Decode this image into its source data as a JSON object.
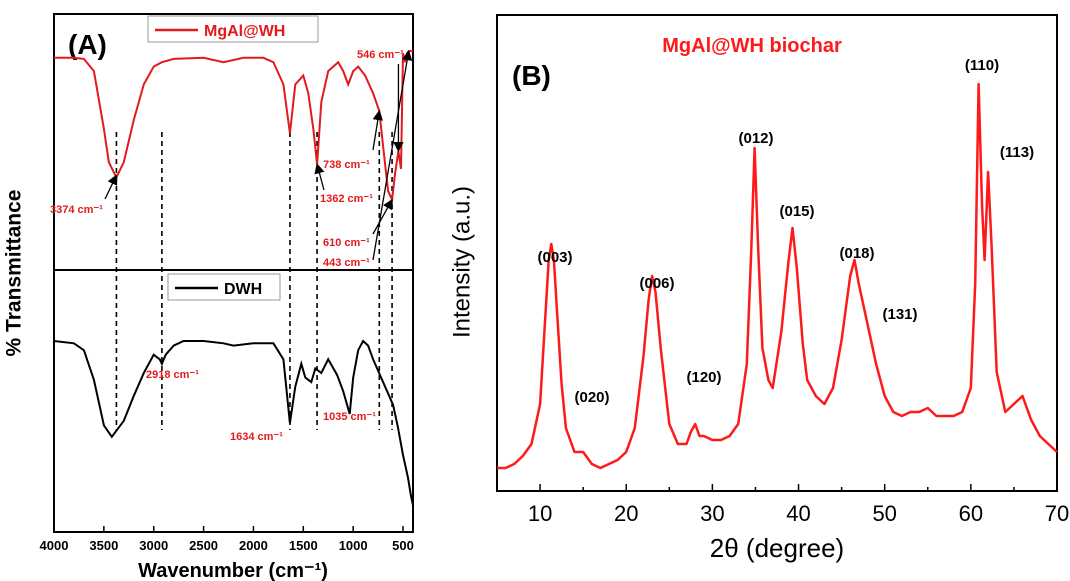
{
  "chart_data": [
    {
      "panel_label": "(A)",
      "type": "line",
      "xlabel": "Wavenumber (cm⁻¹)",
      "ylabel": "% Transmittance",
      "xlim": [
        4000,
        400
      ],
      "x_ticks": [
        4000,
        3500,
        3000,
        2500,
        2000,
        1500,
        1000,
        500
      ],
      "grid": false,
      "series": [
        {
          "name": "MgAl@WH",
          "color": "#e31a1c",
          "points": [
            [
              4000,
              0.92
            ],
            [
              3800,
              0.92
            ],
            [
              3700,
              0.915
            ],
            [
              3600,
              0.86
            ],
            [
              3500,
              0.6
            ],
            [
              3450,
              0.45
            ],
            [
              3374,
              0.38
            ],
            [
              3300,
              0.45
            ],
            [
              3200,
              0.64
            ],
            [
              3100,
              0.8
            ],
            [
              3000,
              0.88
            ],
            [
              2918,
              0.9
            ],
            [
              2800,
              0.915
            ],
            [
              2500,
              0.92
            ],
            [
              2300,
              0.9
            ],
            [
              2100,
              0.92
            ],
            [
              1900,
              0.92
            ],
            [
              1800,
              0.9
            ],
            [
              1700,
              0.8
            ],
            [
              1634,
              0.58
            ],
            [
              1580,
              0.8
            ],
            [
              1500,
              0.84
            ],
            [
              1450,
              0.76
            ],
            [
              1400,
              0.6
            ],
            [
              1362,
              0.44
            ],
            [
              1320,
              0.72
            ],
            [
              1250,
              0.86
            ],
            [
              1150,
              0.9
            ],
            [
              1100,
              0.86
            ],
            [
              1050,
              0.8
            ],
            [
              1000,
              0.86
            ],
            [
              950,
              0.88
            ],
            [
              880,
              0.84
            ],
            [
              800,
              0.76
            ],
            [
              738,
              0.68
            ],
            [
              690,
              0.48
            ],
            [
              650,
              0.32
            ],
            [
              610,
              0.28
            ],
            [
              580,
              0.4
            ],
            [
              546,
              0.5
            ],
            [
              520,
              0.42
            ],
            [
              500,
              0.94
            ],
            [
              480,
              0.9
            ],
            [
              460,
              0.94
            ],
            [
              443,
              0.95
            ],
            [
              420,
              0.95
            ],
            [
              400,
              0.95
            ]
          ]
        },
        {
          "name": "DWH",
          "color": "#000000",
          "points": [
            [
              4000,
              0.82
            ],
            [
              3800,
              0.81
            ],
            [
              3700,
              0.78
            ],
            [
              3600,
              0.65
            ],
            [
              3500,
              0.45
            ],
            [
              3420,
              0.4
            ],
            [
              3300,
              0.47
            ],
            [
              3200,
              0.58
            ],
            [
              3100,
              0.68
            ],
            [
              3000,
              0.76
            ],
            [
              2940,
              0.74
            ],
            [
              2918,
              0.72
            ],
            [
              2880,
              0.76
            ],
            [
              2800,
              0.8
            ],
            [
              2700,
              0.82
            ],
            [
              2500,
              0.82
            ],
            [
              2300,
              0.81
            ],
            [
              2200,
              0.8
            ],
            [
              2000,
              0.81
            ],
            [
              1800,
              0.81
            ],
            [
              1700,
              0.74
            ],
            [
              1634,
              0.46
            ],
            [
              1580,
              0.62
            ],
            [
              1520,
              0.72
            ],
            [
              1480,
              0.66
            ],
            [
              1420,
              0.64
            ],
            [
              1380,
              0.7
            ],
            [
              1320,
              0.68
            ],
            [
              1250,
              0.74
            ],
            [
              1160,
              0.67
            ],
            [
              1100,
              0.6
            ],
            [
              1035,
              0.5
            ],
            [
              1000,
              0.66
            ],
            [
              950,
              0.78
            ],
            [
              900,
              0.82
            ],
            [
              850,
              0.8
            ],
            [
              800,
              0.74
            ],
            [
              700,
              0.64
            ],
            [
              600,
              0.54
            ],
            [
              550,
              0.44
            ],
            [
              500,
              0.32
            ],
            [
              450,
              0.22
            ],
            [
              420,
              0.14
            ],
            [
              400,
              0.1
            ]
          ]
        }
      ],
      "dashed_markers": [
        3374,
        2918,
        1634,
        1362,
        738,
        610
      ],
      "annotations": [
        {
          "text": "3374 cm⁻¹",
          "wavenumber": 3374
        },
        {
          "text": "2918 cm⁻¹",
          "wavenumber": 2918
        },
        {
          "text": "1634 cm⁻¹",
          "wavenumber": 1634
        },
        {
          "text": "1362 cm⁻¹",
          "wavenumber": 1362
        },
        {
          "text": "1035 cm⁻¹",
          "wavenumber": 1035
        },
        {
          "text": "738 cm⁻¹",
          "wavenumber": 738
        },
        {
          "text": "610 cm⁻¹",
          "wavenumber": 610
        },
        {
          "text": "546 cm⁻¹",
          "wavenumber": 546
        },
        {
          "text": "443 cm⁻¹",
          "wavenumber": 443
        }
      ],
      "legend": [
        "MgAl@WH",
        "DWH"
      ]
    },
    {
      "panel_label": "(B)",
      "type": "line",
      "title": "MgAl@WH biochar",
      "xlabel": "2θ (degree)",
      "ylabel": "Intensity (a.u.)",
      "xlim": [
        5,
        70
      ],
      "x_ticks": [
        10,
        20,
        30,
        40,
        50,
        60,
        70
      ],
      "grid": false,
      "series": [
        {
          "name": "MgAl@WH biochar",
          "color": "#ff1a1a",
          "points": [
            [
              5,
              0.04
            ],
            [
              6,
              0.04
            ],
            [
              7,
              0.05
            ],
            [
              8,
              0.07
            ],
            [
              9,
              0.1
            ],
            [
              10,
              0.2
            ],
            [
              10.5,
              0.38
            ],
            [
              11,
              0.56
            ],
            [
              11.3,
              0.6
            ],
            [
              11.6,
              0.56
            ],
            [
              12,
              0.42
            ],
            [
              12.5,
              0.25
            ],
            [
              13,
              0.14
            ],
            [
              14,
              0.08
            ],
            [
              15,
              0.08
            ],
            [
              16,
              0.05
            ],
            [
              17,
              0.04
            ],
            [
              18,
              0.05
            ],
            [
              19,
              0.06
            ],
            [
              20,
              0.08
            ],
            [
              21,
              0.14
            ],
            [
              22,
              0.32
            ],
            [
              22.6,
              0.46
            ],
            [
              23,
              0.52
            ],
            [
              23.4,
              0.48
            ],
            [
              24,
              0.34
            ],
            [
              25,
              0.15
            ],
            [
              26,
              0.1
            ],
            [
              27,
              0.1
            ],
            [
              27.5,
              0.13
            ],
            [
              28,
              0.15
            ],
            [
              28.5,
              0.12
            ],
            [
              29,
              0.12
            ],
            [
              30,
              0.11
            ],
            [
              31,
              0.11
            ],
            [
              32,
              0.12
            ],
            [
              33,
              0.15
            ],
            [
              34,
              0.3
            ],
            [
              34.5,
              0.58
            ],
            [
              34.9,
              0.84
            ],
            [
              35.3,
              0.6
            ],
            [
              35.8,
              0.34
            ],
            [
              36.5,
              0.26
            ],
            [
              37,
              0.24
            ],
            [
              38,
              0.38
            ],
            [
              38.8,
              0.55
            ],
            [
              39.3,
              0.64
            ],
            [
              39.8,
              0.54
            ],
            [
              40.5,
              0.35
            ],
            [
              41,
              0.26
            ],
            [
              42,
              0.22
            ],
            [
              43,
              0.2
            ],
            [
              44,
              0.24
            ],
            [
              45,
              0.36
            ],
            [
              46,
              0.52
            ],
            [
              46.5,
              0.56
            ],
            [
              47,
              0.5
            ],
            [
              48,
              0.4
            ],
            [
              49,
              0.3
            ],
            [
              50,
              0.22
            ],
            [
              51,
              0.18
            ],
            [
              52,
              0.17
            ],
            [
              53,
              0.18
            ],
            [
              54,
              0.18
            ],
            [
              55,
              0.19
            ],
            [
              56,
              0.17
            ],
            [
              57,
              0.17
            ],
            [
              58,
              0.17
            ],
            [
              59,
              0.18
            ],
            [
              60,
              0.24
            ],
            [
              60.5,
              0.5
            ],
            [
              60.9,
              1.0
            ],
            [
              61.3,
              0.7
            ],
            [
              61.6,
              0.56
            ],
            [
              62,
              0.78
            ],
            [
              62.4,
              0.6
            ],
            [
              63,
              0.28
            ],
            [
              64,
              0.18
            ],
            [
              65,
              0.2
            ],
            [
              66,
              0.22
            ],
            [
              67,
              0.16
            ],
            [
              68,
              0.12
            ],
            [
              69,
              0.1
            ],
            [
              70,
              0.08
            ]
          ]
        }
      ],
      "peak_labels": [
        {
          "text": "(003)",
          "x": 11.3
        },
        {
          "text": "(020)",
          "x": 14.5
        },
        {
          "text": "(006)",
          "x": 23.0
        },
        {
          "text": "(120)",
          "x": 28.2
        },
        {
          "text": "(012)",
          "x": 34.9
        },
        {
          "text": "(015)",
          "x": 39.3
        },
        {
          "text": "(018)",
          "x": 46.5
        },
        {
          "text": "(131)",
          "x": 49.8
        },
        {
          "text": "(110)",
          "x": 60.9
        },
        {
          "text": "(113)",
          "x": 62.6
        }
      ]
    }
  ]
}
